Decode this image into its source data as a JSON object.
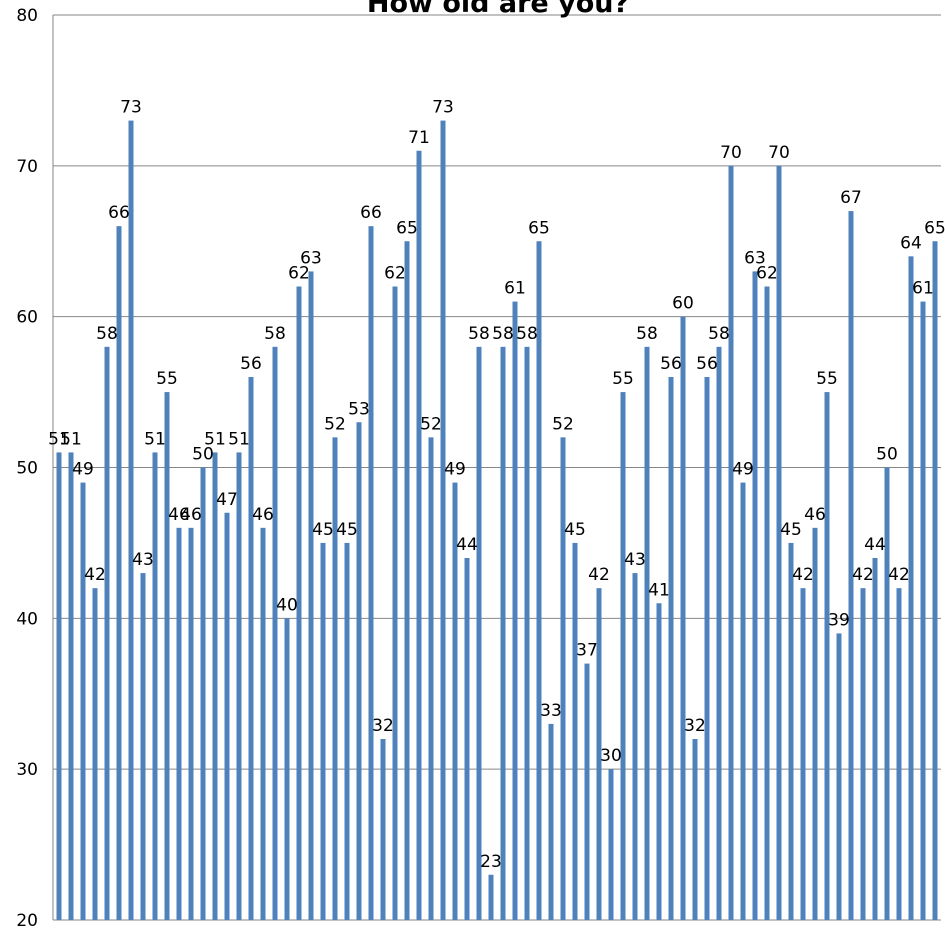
{
  "chart_data": {
    "type": "bar",
    "title": "How old are you?",
    "xlabel": "",
    "ylabel": "",
    "ylim": [
      20,
      80
    ],
    "yticks": [
      20,
      30,
      40,
      50,
      60,
      70,
      80
    ],
    "grid": true,
    "legend": "none",
    "bar_color": "#4F81BD",
    "gridline_color": "#868686",
    "values": [
      51,
      51,
      49,
      42,
      58,
      66,
      73,
      43,
      51,
      55,
      46,
      46,
      50,
      51,
      47,
      51,
      56,
      46,
      58,
      40,
      62,
      63,
      45,
      52,
      45,
      53,
      66,
      32,
      62,
      65,
      71,
      52,
      73,
      49,
      44,
      58,
      23,
      58,
      61,
      58,
      65,
      33,
      52,
      45,
      37,
      42,
      30,
      55,
      43,
      58,
      41,
      56,
      60,
      32,
      56,
      58,
      70,
      49,
      63,
      62,
      70,
      45,
      42,
      46,
      55,
      39,
      67,
      42,
      44,
      50,
      42,
      64,
      61,
      65
    ]
  }
}
